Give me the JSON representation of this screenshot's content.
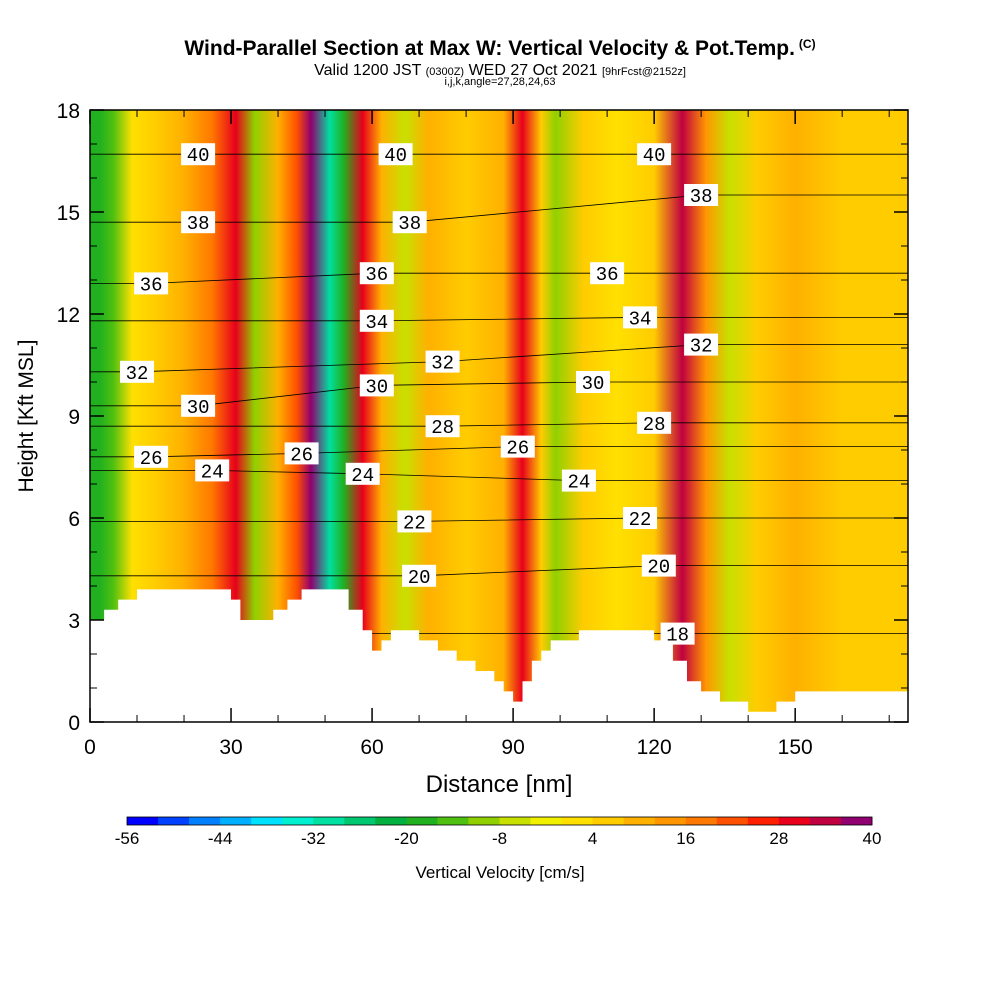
{
  "header": {
    "title": "Wind-Parallel Section at Max W: Vertical Velocity & Pot.Temp.",
    "copyright": "(C)",
    "valid_prefix": "Valid 1200 JST",
    "valid_utc": "(0300Z)",
    "valid_date": "WED 27 Oct 2021",
    "forecast": "[9hrFcst@2152z]",
    "indices": "i,j,k,angle=27,28,24,63"
  },
  "chart_data": {
    "type": "heatmap",
    "xlabel": "Distance [nm]",
    "ylabel": "Height [Kft MSL]",
    "xlim": [
      0,
      174
    ],
    "ylim": [
      0,
      18
    ],
    "x_ticks": [
      0,
      30,
      60,
      90,
      120,
      150
    ],
    "y_ticks": [
      0,
      3,
      6,
      9,
      12,
      15,
      18
    ],
    "colorbar": {
      "label": "Vertical Velocity [cm/s]",
      "ticks": [
        -56,
        -44,
        -32,
        -20,
        -8,
        4,
        16,
        28,
        40
      ],
      "levels": [
        -56,
        -52,
        -48,
        -44,
        -40,
        -36,
        -32,
        -28,
        -24,
        -20,
        -16,
        -12,
        -8,
        -4,
        0,
        4,
        8,
        12,
        16,
        20,
        24,
        28,
        32,
        36,
        40
      ],
      "colors": [
        "#0000ff",
        "#0040ff",
        "#0080ff",
        "#00b0ff",
        "#00e0ff",
        "#00f0d0",
        "#00e0a0",
        "#00c870",
        "#00b040",
        "#20b020",
        "#50c010",
        "#90d000",
        "#c8e000",
        "#f0f000",
        "#ffe000",
        "#ffcc00",
        "#ffb000",
        "#ff9600",
        "#ff7800",
        "#ff5000",
        "#ff2000",
        "#e8001c",
        "#c00040",
        "#900070",
        "#600090"
      ]
    },
    "vertical_velocity_columns": [
      {
        "x": 2,
        "value": -20
      },
      {
        "x": 5,
        "value": -16
      },
      {
        "x": 9,
        "value": 0
      },
      {
        "x": 14,
        "value": 4
      },
      {
        "x": 20,
        "value": 8
      },
      {
        "x": 26,
        "value": 16
      },
      {
        "x": 31,
        "value": 28
      },
      {
        "x": 35,
        "value": -12
      },
      {
        "x": 40,
        "value": 8
      },
      {
        "x": 44,
        "value": 20
      },
      {
        "x": 47,
        "value": 36
      },
      {
        "x": 51,
        "value": -32
      },
      {
        "x": 54,
        "value": -20
      },
      {
        "x": 58,
        "value": 28
      },
      {
        "x": 62,
        "value": 8
      },
      {
        "x": 67,
        "value": -8
      },
      {
        "x": 72,
        "value": 8
      },
      {
        "x": 80,
        "value": 4
      },
      {
        "x": 88,
        "value": 8
      },
      {
        "x": 92,
        "value": 28
      },
      {
        "x": 96,
        "value": 4
      },
      {
        "x": 99,
        "value": -12
      },
      {
        "x": 105,
        "value": 4
      },
      {
        "x": 112,
        "value": 0
      },
      {
        "x": 120,
        "value": 4
      },
      {
        "x": 126,
        "value": 32
      },
      {
        "x": 131,
        "value": 12
      },
      {
        "x": 136,
        "value": -8
      },
      {
        "x": 142,
        "value": 4
      },
      {
        "x": 150,
        "value": 8
      },
      {
        "x": 160,
        "value": 4
      },
      {
        "x": 170,
        "value": 4
      }
    ],
    "theta_contours": {
      "labels": [
        {
          "value": "40",
          "x": 23,
          "y": 16.7
        },
        {
          "value": "40",
          "x": 65,
          "y": 16.7
        },
        {
          "value": "40",
          "x": 120,
          "y": 16.7
        },
        {
          "value": "38",
          "x": 23,
          "y": 14.7
        },
        {
          "value": "38",
          "x": 68,
          "y": 14.7
        },
        {
          "value": "38",
          "x": 130,
          "y": 15.5
        },
        {
          "value": "36",
          "x": 13,
          "y": 12.9
        },
        {
          "value": "36",
          "x": 61,
          "y": 13.2
        },
        {
          "value": "36",
          "x": 110,
          "y": 13.2
        },
        {
          "value": "34",
          "x": 61,
          "y": 11.8
        },
        {
          "value": "34",
          "x": 117,
          "y": 11.9
        },
        {
          "value": "32",
          "x": 10,
          "y": 10.3
        },
        {
          "value": "32",
          "x": 75,
          "y": 10.6
        },
        {
          "value": "32",
          "x": 130,
          "y": 11.1
        },
        {
          "value": "30",
          "x": 23,
          "y": 9.3
        },
        {
          "value": "30",
          "x": 61,
          "y": 9.9
        },
        {
          "value": "30",
          "x": 107,
          "y": 10
        },
        {
          "value": "28",
          "x": 75,
          "y": 8.7
        },
        {
          "value": "28",
          "x": 120,
          "y": 8.8
        },
        {
          "value": "26",
          "x": 13,
          "y": 7.8
        },
        {
          "value": "26",
          "x": 45,
          "y": 7.9
        },
        {
          "value": "26",
          "x": 91,
          "y": 8.1
        },
        {
          "value": "24",
          "x": 26,
          "y": 7.4
        },
        {
          "value": "24",
          "x": 58,
          "y": 7.3
        },
        {
          "value": "24",
          "x": 104,
          "y": 7.1
        },
        {
          "value": "22",
          "x": 69,
          "y": 5.9
        },
        {
          "value": "22",
          "x": 117,
          "y": 6.0
        },
        {
          "value": "20",
          "x": 70,
          "y": 4.3
        },
        {
          "value": "20",
          "x": 121,
          "y": 4.6
        },
        {
          "value": "18",
          "x": 125,
          "y": 2.6
        }
      ]
    },
    "terrain": [
      {
        "x": 0,
        "y": 3.0
      },
      {
        "x": 3,
        "y": 3.3
      },
      {
        "x": 6,
        "y": 3.6
      },
      {
        "x": 10,
        "y": 3.9
      },
      {
        "x": 26,
        "y": 3.9
      },
      {
        "x": 30,
        "y": 3.6
      },
      {
        "x": 32,
        "y": 3.0
      },
      {
        "x": 38,
        "y": 3.0
      },
      {
        "x": 39,
        "y": 3.3
      },
      {
        "x": 42,
        "y": 3.6
      },
      {
        "x": 45,
        "y": 3.9
      },
      {
        "x": 53,
        "y": 3.9
      },
      {
        "x": 55,
        "y": 3.3
      },
      {
        "x": 58,
        "y": 2.7
      },
      {
        "x": 60,
        "y": 2.1
      },
      {
        "x": 62,
        "y": 2.4
      },
      {
        "x": 64,
        "y": 2.7
      },
      {
        "x": 66,
        "y": 2.7
      },
      {
        "x": 70,
        "y": 2.4
      },
      {
        "x": 74,
        "y": 2.1
      },
      {
        "x": 78,
        "y": 1.8
      },
      {
        "x": 82,
        "y": 1.5
      },
      {
        "x": 86,
        "y": 1.2
      },
      {
        "x": 88,
        "y": 0.9
      },
      {
        "x": 90,
        "y": 0.6
      },
      {
        "x": 92,
        "y": 1.2
      },
      {
        "x": 94,
        "y": 1.8
      },
      {
        "x": 96,
        "y": 2.1
      },
      {
        "x": 98,
        "y": 2.4
      },
      {
        "x": 104,
        "y": 2.7
      },
      {
        "x": 116,
        "y": 2.7
      },
      {
        "x": 120,
        "y": 2.4
      },
      {
        "x": 124,
        "y": 1.8
      },
      {
        "x": 127,
        "y": 1.2
      },
      {
        "x": 130,
        "y": 0.9
      },
      {
        "x": 134,
        "y": 0.6
      },
      {
        "x": 140,
        "y": 0.3
      },
      {
        "x": 146,
        "y": 0.6
      },
      {
        "x": 150,
        "y": 0.9
      },
      {
        "x": 174,
        "y": 0.9
      }
    ]
  }
}
